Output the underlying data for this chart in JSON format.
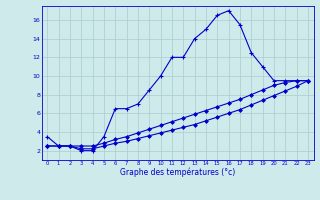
{
  "xlabel": "Graphe des températures (°c)",
  "bg_color": "#ceeaea",
  "line_color": "#0000cc",
  "grid_color": "#aacccc",
  "xlim": [
    -0.5,
    23.5
  ],
  "ylim": [
    1.0,
    17.5
  ],
  "yticks": [
    2,
    4,
    6,
    8,
    10,
    12,
    14,
    16
  ],
  "xticks": [
    0,
    1,
    2,
    3,
    4,
    5,
    6,
    7,
    8,
    9,
    10,
    11,
    12,
    13,
    14,
    15,
    16,
    17,
    18,
    19,
    20,
    21,
    22,
    23
  ],
  "hours": [
    0,
    1,
    2,
    3,
    4,
    5,
    6,
    7,
    8,
    9,
    10,
    11,
    12,
    13,
    14,
    15,
    16,
    17,
    18,
    19,
    20,
    21,
    22,
    23
  ],
  "temp_main": [
    3.5,
    2.5,
    2.5,
    2.0,
    2.0,
    3.5,
    6.5,
    6.5,
    7.0,
    8.5,
    10.0,
    12.0,
    12.0,
    14.0,
    15.0,
    16.5,
    17.0,
    15.5,
    12.5,
    11.0,
    9.5,
    9.5,
    9.5,
    9.5
  ],
  "temp_trend1": [
    2.5,
    2.5,
    2.5,
    2.5,
    2.5,
    2.8,
    3.2,
    3.5,
    3.9,
    4.3,
    4.7,
    5.1,
    5.5,
    5.9,
    6.3,
    6.7,
    7.1,
    7.5,
    8.0,
    8.5,
    9.0,
    9.3,
    9.5,
    9.5
  ],
  "temp_trend2": [
    2.5,
    2.5,
    2.5,
    2.2,
    2.2,
    2.5,
    2.8,
    3.0,
    3.3,
    3.6,
    3.9,
    4.2,
    4.5,
    4.8,
    5.2,
    5.6,
    6.0,
    6.4,
    6.9,
    7.4,
    7.9,
    8.4,
    8.9,
    9.5
  ]
}
